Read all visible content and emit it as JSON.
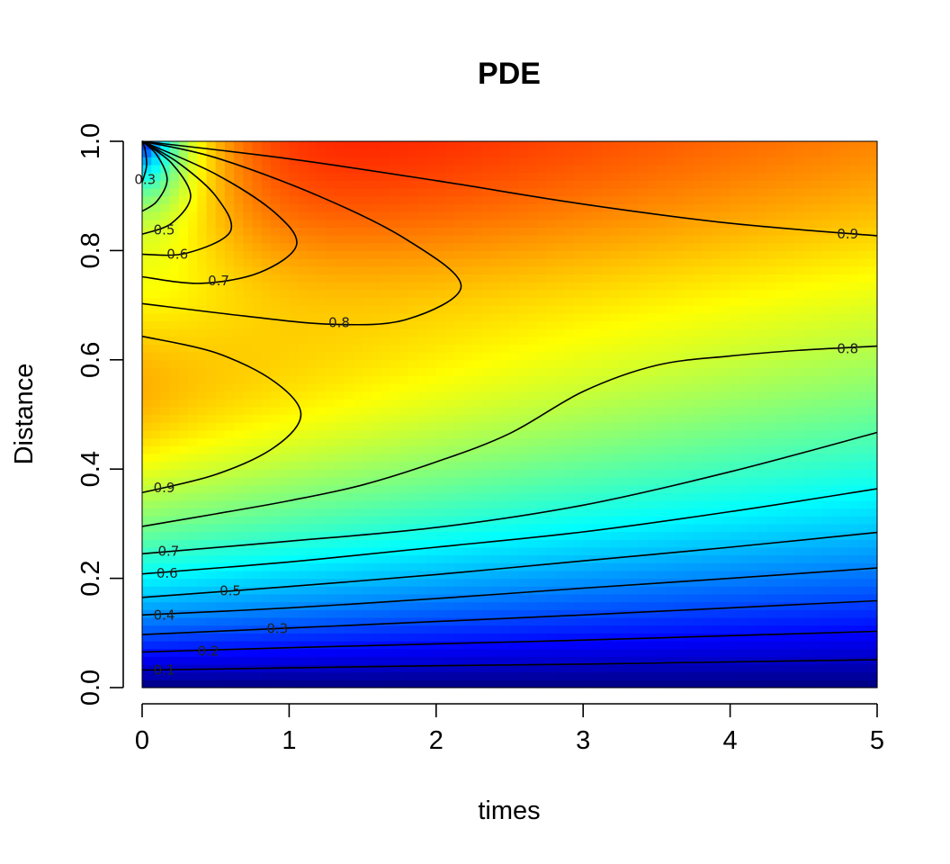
{
  "chart_data": {
    "type": "heatmap",
    "title": "PDE",
    "xlabel": "times",
    "ylabel": "Distance",
    "xlim": [
      0,
      5
    ],
    "ylim": [
      0,
      1
    ],
    "xticks": [
      "0",
      "1",
      "2",
      "3",
      "4",
      "5"
    ],
    "yticks": [
      "0.0",
      "0.2",
      "0.4",
      "0.6",
      "0.8",
      "1.0"
    ],
    "colorscale": "jet",
    "colors": [
      "#00007F",
      "#0000FF",
      "#007FFF",
      "#00FFFF",
      "#7FFF7F",
      "#FFFF00",
      "#FF7F00",
      "#FF0000",
      "#7F0000"
    ],
    "zrange": [
      0,
      1
    ],
    "contours": [
      {
        "level": "0.1",
        "points": [
          [
            0,
            0.032
          ],
          [
            1,
            0.036
          ],
          [
            2,
            0.04
          ],
          [
            3,
            0.043
          ],
          [
            4,
            0.047
          ],
          [
            5,
            0.051
          ]
        ]
      },
      {
        "level": "0.2",
        "points": [
          [
            0,
            0.065
          ],
          [
            1,
            0.073
          ],
          [
            2,
            0.08
          ],
          [
            3,
            0.087
          ],
          [
            4,
            0.095
          ],
          [
            5,
            0.103
          ]
        ]
      },
      {
        "level": "0.3",
        "points": [
          [
            0,
            0.097
          ],
          [
            1,
            0.109
          ],
          [
            2,
            0.121
          ],
          [
            3,
            0.133
          ],
          [
            4,
            0.146
          ],
          [
            5,
            0.159
          ]
        ]
      },
      {
        "level": "0.4",
        "points": [
          [
            0,
            0.133
          ],
          [
            1,
            0.146
          ],
          [
            2,
            0.163
          ],
          [
            3,
            0.182
          ],
          [
            4,
            0.2
          ],
          [
            5,
            0.219
          ]
        ]
      },
      {
        "level": "0.5",
        "points": [
          [
            0,
            0.165
          ],
          [
            1,
            0.185
          ],
          [
            2,
            0.207
          ],
          [
            3,
            0.232
          ],
          [
            4,
            0.257
          ],
          [
            5,
            0.284
          ]
        ]
      },
      {
        "level": "0.6",
        "points": [
          [
            0,
            0.208
          ],
          [
            1,
            0.23
          ],
          [
            2,
            0.257
          ],
          [
            3,
            0.285
          ],
          [
            4,
            0.322
          ],
          [
            5,
            0.364
          ]
        ]
      },
      {
        "level": "0.7",
        "points": [
          [
            0,
            0.245
          ],
          [
            1,
            0.268
          ],
          [
            2,
            0.293
          ],
          [
            3,
            0.334
          ],
          [
            4,
            0.395
          ],
          [
            5,
            0.467
          ]
        ]
      },
      {
        "level": "0.8",
        "points": [
          [
            0,
            0.295
          ],
          [
            0.5,
            0.318
          ],
          [
            1,
            0.342
          ],
          [
            1.5,
            0.371
          ],
          [
            2,
            0.413
          ],
          [
            2.5,
            0.465
          ],
          [
            3,
            0.542
          ],
          [
            3.5,
            0.59
          ],
          [
            4,
            0.607
          ],
          [
            4.5,
            0.618
          ],
          [
            5,
            0.625
          ]
        ]
      },
      {
        "level": "0.9",
        "points": [
          [
            0,
            0.357
          ],
          [
            0.5,
            0.39
          ],
          [
            0.9,
            0.44
          ],
          [
            1.08,
            0.5
          ],
          [
            0.9,
            0.56
          ],
          [
            0.5,
            0.613
          ],
          [
            0,
            0.643
          ]
        ]
      },
      {
        "level": "0.8",
        "points": [
          [
            0,
            0.703
          ],
          [
            0.7,
            0.68
          ],
          [
            1.3,
            0.665
          ],
          [
            1.8,
            0.674
          ],
          [
            2.17,
            0.735
          ],
          [
            1.8,
            0.82
          ],
          [
            1.2,
            0.9
          ],
          [
            0.5,
            0.97
          ],
          [
            0,
            1.0
          ]
        ]
      },
      {
        "level": "0.9",
        "points": [
          [
            0,
            1.0
          ],
          [
            1,
            0.968
          ],
          [
            2,
            0.928
          ],
          [
            3,
            0.885
          ],
          [
            4,
            0.85
          ],
          [
            5,
            0.827
          ]
        ]
      },
      {
        "level": "0.7",
        "points": [
          [
            0,
            0.752
          ],
          [
            0.4,
            0.74
          ],
          [
            0.8,
            0.76
          ],
          [
            1.05,
            0.81
          ],
          [
            0.9,
            0.87
          ],
          [
            0.5,
            0.94
          ],
          [
            0,
            1.0
          ]
        ]
      },
      {
        "level": "0.6",
        "points": [
          [
            0,
            0.793
          ],
          [
            0.3,
            0.795
          ],
          [
            0.6,
            0.835
          ],
          [
            0.5,
            0.9
          ],
          [
            0.25,
            0.96
          ],
          [
            0,
            1.0
          ]
        ]
      },
      {
        "level": "0.5",
        "points": [
          [
            0,
            0.83
          ],
          [
            0.2,
            0.85
          ],
          [
            0.33,
            0.9
          ],
          [
            0.2,
            0.96
          ],
          [
            0,
            1.0
          ]
        ]
      },
      {
        "level": "0.4",
        "points": [
          [
            0,
            0.872
          ],
          [
            0.1,
            0.89
          ],
          [
            0.17,
            0.93
          ],
          [
            0.1,
            0.975
          ],
          [
            0,
            1.0
          ]
        ]
      },
      {
        "level": "0.3",
        "points": [
          [
            0,
            0.925
          ],
          [
            0.03,
            0.955
          ],
          [
            0.02,
            0.985
          ],
          [
            0,
            1.0
          ]
        ]
      }
    ],
    "contour_labels": [
      {
        "text": "0.1",
        "x": 0.15,
        "y": 0.032
      },
      {
        "text": "0.2",
        "x": 0.45,
        "y": 0.067
      },
      {
        "text": "0.3",
        "x": 0.92,
        "y": 0.108
      },
      {
        "text": "0.4",
        "x": 0.15,
        "y": 0.133
      },
      {
        "text": "0.5",
        "x": 0.6,
        "y": 0.177
      },
      {
        "text": "0.6",
        "x": 0.17,
        "y": 0.209
      },
      {
        "text": "0.7",
        "x": 0.18,
        "y": 0.25
      },
      {
        "text": "0.9",
        "x": 0.15,
        "y": 0.366
      },
      {
        "text": "0.8",
        "x": 4.8,
        "y": 0.62
      },
      {
        "text": "0.8",
        "x": 1.34,
        "y": 0.668
      },
      {
        "text": "0.7",
        "x": 0.52,
        "y": 0.745
      },
      {
        "text": "0.6",
        "x": 0.24,
        "y": 0.793
      },
      {
        "text": "0.5",
        "x": 0.15,
        "y": 0.838
      },
      {
        "text": "0.9",
        "x": 4.8,
        "y": 0.83
      },
      {
        "text": "0.3",
        "x": 0.02,
        "y": 0.93
      }
    ]
  }
}
